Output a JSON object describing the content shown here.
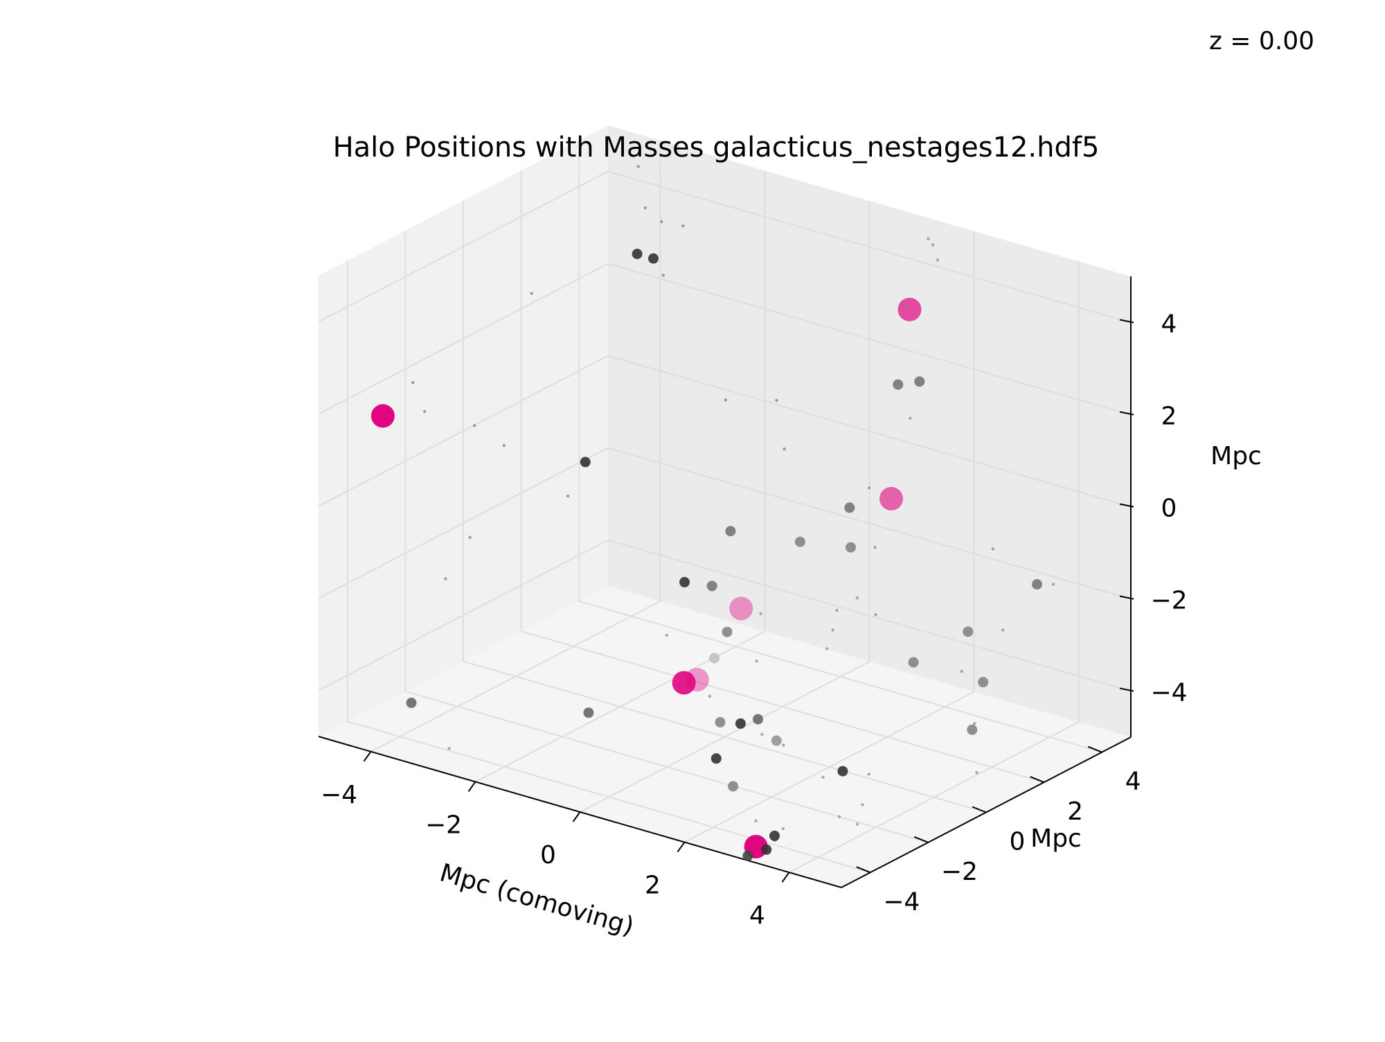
{
  "annotation": "z = 0.00",
  "chart_data": {
    "type": "scatter",
    "projection": "3d",
    "title": "Halo Positions with Masses galacticus_nestages12.hdf5",
    "xlabel": "Mpc (comoving)",
    "ylabel": "Mpc",
    "zlabel": "Mpc",
    "xlim": [
      -5,
      5
    ],
    "ylim": [
      -5,
      5
    ],
    "zlim": [
      -5,
      5
    ],
    "xticks": [
      -4,
      -2,
      0,
      2,
      4
    ],
    "yticks": [
      -4,
      -2,
      0,
      2,
      4
    ],
    "zticks": [
      -4,
      -2,
      0,
      2,
      4
    ],
    "xtick_labels": [
      "−4",
      "−2",
      "0",
      "2",
      "4"
    ],
    "ytick_labels": [
      "−4",
      "−2",
      "0",
      "2",
      "4"
    ],
    "ztick_labels": [
      "−4",
      "−2",
      "0",
      "2",
      "4"
    ],
    "grid": true,
    "colors": {
      "highlight": "#e0067f",
      "halo": "#444444",
      "pane_back": "#ebebeb",
      "pane_side": "#f1f1f1",
      "pane_floor": "#f5f5f5"
    },
    "series": [
      {
        "points": [
          {
            "x": -4.6,
            "y": -3.5,
            "z": 1.6,
            "size": 4,
            "color": "#e0067f",
            "alpha": 1.0
          },
          {
            "x": 3.2,
            "y": -4.7,
            "z": -4.8,
            "size": 4,
            "color": "#e0067f",
            "alpha": 1.0
          },
          {
            "x": 1.1,
            "y": 4.4,
            "z": 3.2,
            "size": 4,
            "color": "#e0067f",
            "alpha": 0.7
          },
          {
            "x": 2.3,
            "y": 1.6,
            "z": 0.4,
            "size": 4,
            "color": "#e0067f",
            "alpha": 0.6
          },
          {
            "x": 1.2,
            "y": -1.6,
            "z": -1.3,
            "size": 4,
            "color": "#e0067f",
            "alpha": 0.4
          },
          {
            "x": 1.8,
            "y": -4.2,
            "z": -1.8,
            "size": 4,
            "color": "#e0067f",
            "alpha": 0.4
          },
          {
            "x": 1.6,
            "y": -4.3,
            "z": -1.9,
            "size": 4,
            "color": "#e0067f",
            "alpha": 0.9
          },
          {
            "x": -4.0,
            "y": 4.2,
            "z": 2.8,
            "size": 2,
            "color": "#333333",
            "alpha": 0.9
          },
          {
            "x": -3.8,
            "y": 4.4,
            "z": 2.7,
            "size": 2,
            "color": "#333333",
            "alpha": 0.9
          },
          {
            "x": -2.0,
            "y": -1.2,
            "z": 0.7,
            "size": 2,
            "color": "#333333",
            "alpha": 0.9
          },
          {
            "x": 1.1,
            "y": 4.0,
            "z": 1.7,
            "size": 2,
            "color": "#666666",
            "alpha": 0.8
          },
          {
            "x": 1.4,
            "y": 4.2,
            "z": 1.8,
            "size": 2,
            "color": "#666666",
            "alpha": 0.8
          },
          {
            "x": 2.0,
            "y": 0.7,
            "z": 0.4,
            "size": 2,
            "color": "#666666",
            "alpha": 0.8
          },
          {
            "x": 2.3,
            "y": 0.2,
            "z": -0.2,
            "size": 2,
            "color": "#777777",
            "alpha": 0.8
          },
          {
            "x": 4.7,
            "y": 2.3,
            "z": -0.9,
            "size": 2,
            "color": "#666666",
            "alpha": 0.8
          },
          {
            "x": 4.1,
            "y": 1.0,
            "z": -1.7,
            "size": 2,
            "color": "#777777",
            "alpha": 0.8
          },
          {
            "x": 3.5,
            "y": 0.2,
            "z": -2.3,
            "size": 2,
            "color": "#777777",
            "alpha": 0.8
          },
          {
            "x": 4.5,
            "y": 0.8,
            "z": -2.6,
            "size": 2,
            "color": "#777777",
            "alpha": 0.8
          },
          {
            "x": 4.4,
            "y": 0.6,
            "z": -3.6,
            "size": 2,
            "color": "#777777",
            "alpha": 0.8
          },
          {
            "x": 1.0,
            "y": 0.8,
            "z": -0.7,
            "size": 2,
            "color": "#777777",
            "alpha": 0.8
          },
          {
            "x": 0.0,
            "y": 0.2,
            "z": -0.6,
            "size": 2,
            "color": "#666666",
            "alpha": 0.8
          },
          {
            "x": 0.2,
            "y": -0.8,
            "z": -1.4,
            "size": 2,
            "color": "#666666",
            "alpha": 0.8
          },
          {
            "x": -1.1,
            "y": 0.6,
            "z": -2.2,
            "size": 2,
            "color": "#333333",
            "alpha": 0.9
          },
          {
            "x": 0.3,
            "y": -0.9,
            "z": -2.9,
            "size": 2,
            "color": "#bbbbbb",
            "alpha": 0.8
          },
          {
            "x": 1.3,
            "y": -1.8,
            "z": -3.7,
            "size": 2,
            "color": "#333333",
            "alpha": 0.9
          },
          {
            "x": 0.6,
            "y": -1.0,
            "z": -2.2,
            "size": 2,
            "color": "#777777",
            "alpha": 0.8
          },
          {
            "x": 1.3,
            "y": -1.2,
            "z": -3.8,
            "size": 2,
            "color": "#555555",
            "alpha": 0.8
          },
          {
            "x": 0.8,
            "y": -1.6,
            "z": -3.9,
            "size": 2,
            "color": "#777777",
            "alpha": 0.8
          },
          {
            "x": 1.6,
            "y": -1.1,
            "z": -4.2,
            "size": 2,
            "color": "#888888",
            "alpha": 0.8
          },
          {
            "x": 2.7,
            "y": -0.8,
            "z": -4.6,
            "size": 2,
            "color": "#333333",
            "alpha": 0.9
          },
          {
            "x": 1.6,
            "y": -2.6,
            "z": -4.7,
            "size": 2,
            "color": "#777777",
            "alpha": 0.8
          },
          {
            "x": -0.5,
            "y": -3.8,
            "z": -3.4,
            "size": 2,
            "color": "#555555",
            "alpha": 0.8
          },
          {
            "x": -4.0,
            "y": -3.6,
            "z": -4.4,
            "size": 2,
            "color": "#555555",
            "alpha": 0.8
          },
          {
            "x": 1.5,
            "y": -3.0,
            "z": -4.0,
            "size": 2,
            "color": "#333333",
            "alpha": 0.9
          },
          {
            "x": 3.4,
            "y": -4.7,
            "z": -4.8,
            "size": 2,
            "color": "#333333",
            "alpha": 0.9
          },
          {
            "x": 3.1,
            "y": -4.8,
            "z": -5.0,
            "size": 2,
            "color": "#444444",
            "alpha": 0.9
          },
          {
            "x": 3.5,
            "y": -4.6,
            "z": -4.5,
            "size": 2,
            "color": "#333333",
            "alpha": 0.9
          },
          {
            "x": -4.2,
            "y": 4.6,
            "z": 4.5,
            "size": 1,
            "color": "#777777",
            "alpha": 0.7
          },
          {
            "x": -3.9,
            "y": 4.3,
            "z": 3.8,
            "size": 1,
            "color": "#777777",
            "alpha": 0.7
          },
          {
            "x": -3.7,
            "y": 4.5,
            "z": 3.5,
            "size": 1,
            "color": "#777777",
            "alpha": 0.7
          },
          {
            "x": -3.5,
            "y": 4.2,
            "z": 2.5,
            "size": 1,
            "color": "#777777",
            "alpha": 0.7
          },
          {
            "x": -2.9,
            "y": 3.8,
            "z": 3.9,
            "size": 1,
            "color": "#777777",
            "alpha": 0.7
          },
          {
            "x": -4.8,
            "y": 2.0,
            "z": 2.4,
            "size": 1,
            "color": "#777777",
            "alpha": 0.7
          },
          {
            "x": -4.8,
            "y": -2.1,
            "z": 1.8,
            "size": 1,
            "color": "#777777",
            "alpha": 0.7
          },
          {
            "x": -4.3,
            "y": -2.6,
            "z": 1.5,
            "size": 1,
            "color": "#777777",
            "alpha": 0.7
          },
          {
            "x": -3.9,
            "y": -1.6,
            "z": 1.0,
            "size": 1,
            "color": "#777777",
            "alpha": 0.7
          },
          {
            "x": -3.5,
            "y": -1.3,
            "z": 0.6,
            "size": 1,
            "color": "#777777",
            "alpha": 0.7
          },
          {
            "x": -2.5,
            "y": -0.9,
            "z": -0.3,
            "size": 1,
            "color": "#777777",
            "alpha": 0.7
          },
          {
            "x": -3.6,
            "y": -2.3,
            "z": -1.1,
            "size": 1,
            "color": "#777777",
            "alpha": 0.7
          },
          {
            "x": -3.9,
            "y": -2.6,
            "z": -2.0,
            "size": 1,
            "color": "#777777",
            "alpha": 0.7
          },
          {
            "x": -1.2,
            "y": 2.2,
            "z": 1.2,
            "size": 1,
            "color": "#777777",
            "alpha": 0.7
          },
          {
            "x": -1.0,
            "y": 3.6,
            "z": 0.8,
            "size": 1,
            "color": "#777777",
            "alpha": 0.7
          },
          {
            "x": -0.3,
            "y": 2.6,
            "z": 0.3,
            "size": 1,
            "color": "#777777",
            "alpha": 0.7
          },
          {
            "x": 1.4,
            "y": 4.5,
            "z": 4.8,
            "size": 1,
            "color": "#888888",
            "alpha": 0.7
          },
          {
            "x": 1.6,
            "y": 4.3,
            "z": 4.8,
            "size": 1,
            "color": "#888888",
            "alpha": 0.7
          },
          {
            "x": 1.8,
            "y": 4.1,
            "z": 4.6,
            "size": 1,
            "color": "#888888",
            "alpha": 0.7
          },
          {
            "x": 1.3,
            "y": 3.9,
            "z": 3.5,
            "size": 1,
            "color": "#888888",
            "alpha": 0.7
          },
          {
            "x": 1.5,
            "y": 3.7,
            "z": 1.2,
            "size": 1,
            "color": "#888888",
            "alpha": 0.7
          },
          {
            "x": 2.1,
            "y": 1.2,
            "z": 0.7,
            "size": 1,
            "color": "#888888",
            "alpha": 0.7
          },
          {
            "x": 2.6,
            "y": 0.5,
            "z": -0.2,
            "size": 1,
            "color": "#888888",
            "alpha": 0.7
          },
          {
            "x": 2.7,
            "y": -0.3,
            "z": -1.0,
            "size": 1,
            "color": "#888888",
            "alpha": 0.7
          },
          {
            "x": 2.2,
            "y": -0.1,
            "z": -1.5,
            "size": 1,
            "color": "#888888",
            "alpha": 0.7
          },
          {
            "x": 2.4,
            "y": -0.6,
            "z": -1.7,
            "size": 1,
            "color": "#888888",
            "alpha": 0.7
          },
          {
            "x": 3.0,
            "y": -0.2,
            "z": -1.3,
            "size": 1,
            "color": "#888888",
            "alpha": 0.7
          },
          {
            "x": 4.9,
            "y": 2.5,
            "z": -0.9,
            "size": 1,
            "color": "#888888",
            "alpha": 0.7
          },
          {
            "x": 4.3,
            "y": 1.5,
            "z": 0.0,
            "size": 1,
            "color": "#888888",
            "alpha": 0.7
          },
          {
            "x": 4.6,
            "y": 1.3,
            "z": -1.6,
            "size": 1,
            "color": "#888888",
            "alpha": 0.7
          },
          {
            "x": 4.2,
            "y": 0.6,
            "z": -2.4,
            "size": 1,
            "color": "#888888",
            "alpha": 0.7
          },
          {
            "x": 4.5,
            "y": 0.5,
            "z": -3.4,
            "size": 1,
            "color": "#888888",
            "alpha": 0.7
          },
          {
            "x": 4.6,
            "y": 0.4,
            "z": -4.4,
            "size": 1,
            "color": "#888888",
            "alpha": 0.7
          },
          {
            "x": 0.8,
            "y": -0.2,
            "z": -2.0,
            "size": 1,
            "color": "#888888",
            "alpha": 0.7
          },
          {
            "x": 1.9,
            "y": 0.1,
            "z": -2.5,
            "size": 1,
            "color": "#888888",
            "alpha": 0.7
          },
          {
            "x": 1.0,
            "y": -0.7,
            "z": -2.8,
            "size": 1,
            "color": "#888888",
            "alpha": 0.7
          },
          {
            "x": 0.6,
            "y": -1.6,
            "z": -3.4,
            "size": 1,
            "color": "#888888",
            "alpha": 0.7
          },
          {
            "x": 0.4,
            "y": -1.9,
            "z": -3.1,
            "size": 1,
            "color": "#888888",
            "alpha": 0.7
          },
          {
            "x": -0.5,
            "y": -1.1,
            "z": -2.6,
            "size": 1,
            "color": "#888888",
            "alpha": 0.7
          },
          {
            "x": 1.6,
            "y": -1.6,
            "z": -3.9,
            "size": 1,
            "color": "#888888",
            "alpha": 0.7
          },
          {
            "x": 1.9,
            "y": -1.4,
            "z": -4.1,
            "size": 1,
            "color": "#888888",
            "alpha": 0.7
          },
          {
            "x": 2.6,
            "y": -1.3,
            "z": -4.6,
            "size": 1,
            "color": "#888888",
            "alpha": 0.7
          },
          {
            "x": 3.2,
            "y": -0.8,
            "z": -4.5,
            "size": 1,
            "color": "#888888",
            "alpha": 0.7
          },
          {
            "x": 3.3,
            "y": -1.2,
            "z": -5.0,
            "size": 1,
            "color": "#888888",
            "alpha": 0.7
          },
          {
            "x": 3.3,
            "y": -2.0,
            "z": -5.0,
            "size": 1,
            "color": "#888888",
            "alpha": 0.7
          },
          {
            "x": 3.7,
            "y": -2.1,
            "z": -5.0,
            "size": 1,
            "color": "#888888",
            "alpha": 0.7
          },
          {
            "x": 3.0,
            "y": -3.4,
            "z": -4.9,
            "size": 1,
            "color": "#888888",
            "alpha": 0.7
          },
          {
            "x": 2.7,
            "y": -3.8,
            "z": -4.7,
            "size": 1,
            "color": "#888888",
            "alpha": 0.7
          },
          {
            "x": 3.4,
            "y": -4.4,
            "z": -4.7,
            "size": 1,
            "color": "#888888",
            "alpha": 0.7
          },
          {
            "x": -3.0,
            "y": -4.1,
            "z": -4.9,
            "size": 1,
            "color": "#888888",
            "alpha": 0.7
          }
        ]
      }
    ]
  }
}
